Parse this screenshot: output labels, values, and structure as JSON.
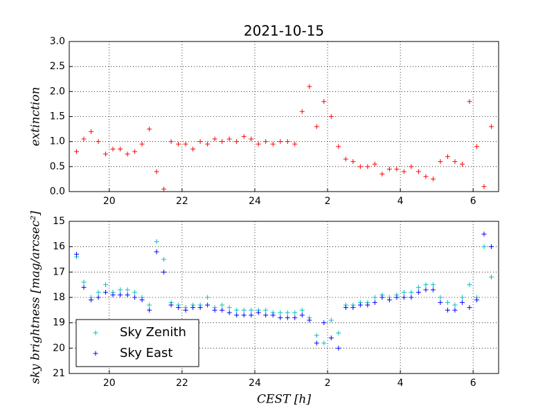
{
  "chart_data": [
    {
      "type": "scatter",
      "title": "2021-10-15",
      "y_label": "extinction",
      "x": [
        19.1,
        19.3,
        19.5,
        19.7,
        19.9,
        20.1,
        20.3,
        20.5,
        20.7,
        20.9,
        21.1,
        21.3,
        21.5,
        21.7,
        21.9,
        22.1,
        22.3,
        22.5,
        22.7,
        22.9,
        23.1,
        23.3,
        23.5,
        23.7,
        23.9,
        24.1,
        24.3,
        24.5,
        24.7,
        24.9,
        25.1,
        25.3,
        25.5,
        25.7,
        25.9,
        26.1,
        26.3,
        26.5,
        26.7,
        26.9,
        27.1,
        27.3,
        27.5,
        27.7,
        27.9,
        28.1,
        28.3,
        28.5,
        28.7,
        28.9,
        29.1,
        29.3,
        29.5,
        29.7,
        29.9,
        30.1,
        30.3,
        30.5
      ],
      "series": [
        {
          "color": "#ff0000",
          "values": [
            0.8,
            1.05,
            1.2,
            1.0,
            0.75,
            0.85,
            0.85,
            0.75,
            0.8,
            0.95,
            1.25,
            0.4,
            0.05,
            1.0,
            0.95,
            0.95,
            0.85,
            1.0,
            0.95,
            1.05,
            1.0,
            1.05,
            1.0,
            1.1,
            1.05,
            0.95,
            1.0,
            0.95,
            1.0,
            1.0,
            0.95,
            1.6,
            2.1,
            1.3,
            1.8,
            1.5,
            0.9,
            0.65,
            0.6,
            0.5,
            0.5,
            0.55,
            0.35,
            0.45,
            0.45,
            0.4,
            0.5,
            0.4,
            0.3,
            0.25,
            0.6,
            0.7,
            0.6,
            0.55,
            1.8,
            0.9,
            0.1,
            1.3
          ]
        }
      ],
      "xlim": [
        18.9,
        30.7
      ],
      "ylim": [
        0,
        3
      ],
      "xticks": [
        20,
        22,
        24,
        {
          "value": 26,
          "label": "2"
        },
        {
          "value": 28,
          "label": "4"
        },
        {
          "value": 30,
          "label": "6"
        }
      ],
      "yticks": [
        {
          "value": 0,
          "label": "0.0"
        },
        0.5,
        {
          "value": 1,
          "label": "1.0"
        },
        1.5,
        {
          "value": 2,
          "label": "2.0"
        },
        2.5,
        {
          "value": 3,
          "label": "3.0"
        }
      ],
      "grid": true
    },
    {
      "type": "scatter",
      "y_label": "sky brightness [mag/arcsec²]",
      "x_label": "CEST [h]",
      "x": [
        19.1,
        19.3,
        19.5,
        19.7,
        19.9,
        20.1,
        20.3,
        20.5,
        20.7,
        20.9,
        21.1,
        21.3,
        21.5,
        21.7,
        21.9,
        22.1,
        22.3,
        22.5,
        22.7,
        22.9,
        23.1,
        23.3,
        23.5,
        23.7,
        23.9,
        24.1,
        24.3,
        24.5,
        24.7,
        24.9,
        25.1,
        25.3,
        25.5,
        25.7,
        25.9,
        26.1,
        26.3,
        26.5,
        26.7,
        26.9,
        27.1,
        27.3,
        27.5,
        27.7,
        27.9,
        28.1,
        28.3,
        28.5,
        28.7,
        28.9,
        29.1,
        29.3,
        29.5,
        29.7,
        29.9,
        30.1,
        30.3,
        30.5
      ],
      "series": [
        {
          "name": "Sky Zenith",
          "color": "#00bfbf",
          "values": [
            16.4,
            17.4,
            18.0,
            17.8,
            17.5,
            17.8,
            17.7,
            17.7,
            17.8,
            18.0,
            18.3,
            15.8,
            16.5,
            18.2,
            18.3,
            18.4,
            18.3,
            18.3,
            18.0,
            18.4,
            18.3,
            18.4,
            18.5,
            18.5,
            18.5,
            18.5,
            18.5,
            18.6,
            18.6,
            18.6,
            18.6,
            18.5,
            18.8,
            19.5,
            19.8,
            18.9,
            19.4,
            18.3,
            18.3,
            18.2,
            18.2,
            18.0,
            17.9,
            18.0,
            17.9,
            17.8,
            17.8,
            17.6,
            17.5,
            17.5,
            18.0,
            18.2,
            18.3,
            18.0,
            17.5,
            18.0,
            16.0,
            17.2
          ]
        },
        {
          "name": "Sky East",
          "color": "#0000ff",
          "values": [
            16.3,
            17.6,
            18.1,
            18.0,
            17.8,
            17.9,
            17.9,
            17.9,
            18.0,
            18.1,
            18.5,
            16.2,
            17.0,
            18.3,
            18.4,
            18.5,
            18.4,
            18.4,
            18.3,
            18.5,
            18.5,
            18.6,
            18.7,
            18.7,
            18.7,
            18.6,
            18.7,
            18.7,
            18.8,
            18.8,
            18.8,
            18.7,
            18.9,
            19.8,
            19.0,
            19.6,
            20.0,
            18.4,
            18.4,
            18.3,
            18.3,
            18.2,
            18.0,
            18.1,
            18.0,
            18.0,
            18.0,
            17.8,
            17.7,
            17.7,
            18.2,
            18.5,
            18.5,
            18.2,
            18.4,
            18.1,
            15.5,
            16.0
          ]
        }
      ],
      "xlim": [
        18.9,
        30.7
      ],
      "ylim": [
        21,
        15
      ],
      "xticks": [
        20,
        22,
        24,
        {
          "value": 26,
          "label": "2"
        },
        {
          "value": 28,
          "label": "4"
        },
        {
          "value": 30,
          "label": "6"
        }
      ],
      "yticks": [
        15,
        16,
        17,
        18,
        19,
        20,
        21
      ],
      "grid": true,
      "legend": "lower left"
    }
  ]
}
